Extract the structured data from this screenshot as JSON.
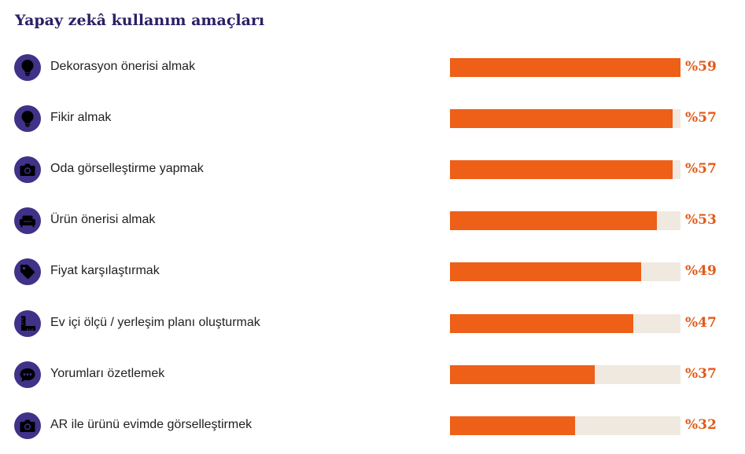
{
  "chart_data": {
    "type": "bar",
    "title": "Yapay zekâ kullanım amaçları",
    "categories": [
      "Dekorasyon önerisi almak",
      "Fikir almak",
      "Oda görselleştirme yapmak",
      "Ürün önerisi almak",
      "Fiyat karşılaştırmak",
      "Ev içi ölçü / yerleşim planı oluşturmak",
      "Yorumları özetlemek",
      "AR ile ürünü evimde görselleştirmek"
    ],
    "values": [
      59,
      57,
      57,
      53,
      49,
      47,
      37,
      32
    ],
    "value_labels": [
      "%59",
      "%57",
      "%57",
      "%53",
      "%49",
      "%47",
      "%37",
      "%32"
    ],
    "icons": [
      "lightbulb-icon",
      "lightbulb-icon",
      "camera-icon",
      "sofa-icon",
      "price-tag-icon",
      "ruler-icon",
      "chat-bubble-icon",
      "camera-icon"
    ],
    "ylim": [
      0,
      59
    ],
    "orientation": "horizontal",
    "colors": {
      "bar": "#ee5f17",
      "track": "#efe9e0",
      "icon_bg": "#3f3288",
      "title": "#2b1f66",
      "value": "#e05a18"
    }
  }
}
